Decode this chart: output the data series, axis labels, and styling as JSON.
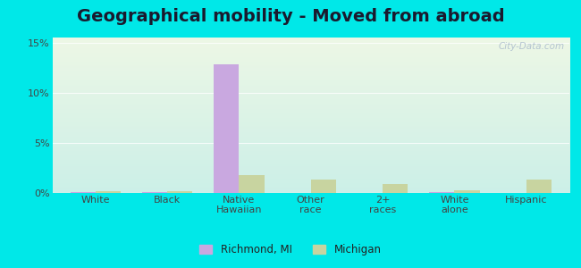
{
  "title": "Geographical mobility - Moved from abroad",
  "categories": [
    "White",
    "Black",
    "Native\nHawaiian",
    "Other\nrace",
    "2+\nraces",
    "White\nalone",
    "Hispanic"
  ],
  "richmond_values": [
    0.001,
    0.001,
    0.128,
    0.0,
    0.0,
    0.001,
    0.0
  ],
  "michigan_values": [
    0.002,
    0.002,
    0.018,
    0.013,
    0.009,
    0.003,
    0.013
  ],
  "richmond_color": "#c9a8e0",
  "michigan_color": "#c8d4a0",
  "bar_width": 0.35,
  "ylim": [
    0,
    0.155
  ],
  "yticks": [
    0.0,
    0.05,
    0.1,
    0.15
  ],
  "ytick_labels": [
    "0%",
    "5%",
    "10%",
    "15%"
  ],
  "outer_background": "#00e8e8",
  "title_fontsize": 14,
  "legend_labels": [
    "Richmond, MI",
    "Michigan"
  ],
  "watermark": "City-Data.com",
  "bg_top_color": "#e8f5e2",
  "bg_bottom_color": "#c8ede8"
}
